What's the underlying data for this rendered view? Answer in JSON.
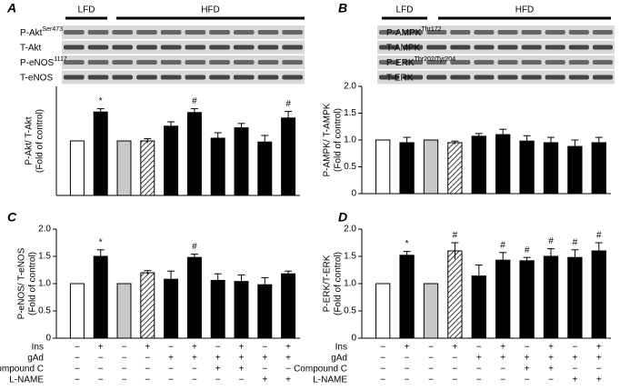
{
  "chart_data": [
    {
      "type": "bar",
      "panel": "A",
      "ylabel": [
        "P-Akt/ T-Akt",
        "(Fold of control)"
      ],
      "blot": {
        "groups": [
          "LFD",
          "HFD"
        ],
        "rows": [
          {
            "name": "P-Akt",
            "sup": "Ser473"
          },
          {
            "name": "T-Akt"
          },
          {
            "name": "P-eNOS",
            "sup": "1117"
          },
          {
            "name": "T-eNOS"
          }
        ]
      },
      "ylim": [
        0,
        2
      ],
      "values": [
        1.0,
        1.53,
        1.0,
        1.0,
        1.27,
        1.52,
        1.05,
        1.24,
        0.98,
        1.42
      ],
      "errors": [
        null,
        0.06,
        null,
        0.04,
        0.08,
        0.07,
        0.1,
        0.08,
        0.12,
        0.12
      ],
      "annotations": [
        null,
        "*",
        null,
        null,
        null,
        "#",
        null,
        null,
        null,
        "#"
      ],
      "colors": [
        "#ffffff",
        "#000000",
        "#c8c8c8",
        "#ffffff",
        "#000000",
        "#000000",
        "#000000",
        "#000000",
        "#000000",
        "#000000"
      ],
      "hatched": [
        false,
        false,
        false,
        true,
        false,
        false,
        false,
        false,
        false,
        false
      ]
    },
    {
      "type": "bar",
      "panel": "B",
      "ylabel": [
        "P-AMPK/ T-AMPK",
        "(Fold of control)"
      ],
      "blot": {
        "groups": [
          "LFD",
          "HFD"
        ],
        "rows": [
          {
            "name": "P-AMPK",
            "sup": "Thr172"
          },
          {
            "name": "T-AMPK"
          },
          {
            "name": "P-ERK",
            "sup": "Thr202/Tyr204"
          },
          {
            "name": "T-ERK"
          }
        ]
      },
      "ylim": [
        0,
        2
      ],
      "yticks": [
        0,
        0.5,
        {
          "value": 1,
          "label": "1.0"
        },
        1.5,
        {
          "value": 2,
          "label": "2.0"
        }
      ],
      "values": [
        1.0,
        0.95,
        1.0,
        0.95,
        1.07,
        1.1,
        0.98,
        0.95,
        0.88,
        0.95
      ],
      "errors": [
        null,
        0.1,
        null,
        0.03,
        0.05,
        0.1,
        0.1,
        0.1,
        0.12,
        0.1
      ],
      "annotations": [
        null,
        null,
        null,
        null,
        null,
        null,
        null,
        null,
        null,
        null
      ],
      "colors": [
        "#ffffff",
        "#000000",
        "#c8c8c8",
        "#ffffff",
        "#000000",
        "#000000",
        "#000000",
        "#000000",
        "#000000",
        "#000000"
      ],
      "hatched": [
        false,
        false,
        false,
        true,
        false,
        false,
        false,
        false,
        false,
        false
      ]
    },
    {
      "type": "bar",
      "panel": "C",
      "ylabel": [
        "P-eNOS/ T-eNOS",
        "(Fold of control)"
      ],
      "ylim": [
        0,
        2
      ],
      "yticks": [
        0,
        0.5,
        {
          "value": 1,
          "label": "1.0"
        },
        1.5,
        {
          "value": 2,
          "label": "2.0"
        }
      ],
      "values": [
        1.0,
        1.5,
        1.0,
        1.2,
        1.08,
        1.48,
        1.06,
        1.04,
        0.98,
        1.18
      ],
      "errors": [
        null,
        0.12,
        null,
        0.04,
        0.15,
        0.06,
        0.12,
        0.12,
        0.13,
        0.05
      ],
      "annotations": [
        null,
        "*",
        null,
        null,
        null,
        "#",
        null,
        null,
        null,
        null
      ],
      "colors": [
        "#ffffff",
        "#000000",
        "#c8c8c8",
        "#ffffff",
        "#000000",
        "#000000",
        "#000000",
        "#000000",
        "#000000",
        "#000000"
      ],
      "hatched": [
        false,
        false,
        false,
        true,
        false,
        false,
        false,
        false,
        false,
        false
      ],
      "treatments": [
        {
          "name": "Ins",
          "signs": [
            "−",
            "+",
            "−",
            "+",
            "−",
            "+",
            "−",
            "+",
            "−",
            "+"
          ]
        },
        {
          "name": "gAd",
          "signs": [
            "−",
            "−",
            "−",
            "−",
            "+",
            "+",
            "+",
            "+",
            "+",
            "+"
          ]
        },
        {
          "name": "Compound C",
          "signs": [
            "−",
            "−",
            "−",
            "−",
            "−",
            "−",
            "+",
            "+",
            "−",
            "−"
          ]
        },
        {
          "name": "L-NAME",
          "signs": [
            "−",
            "−",
            "−",
            "−",
            "−",
            "−",
            "−",
            "−",
            "+",
            "+"
          ]
        }
      ]
    },
    {
      "type": "bar",
      "panel": "D",
      "ylabel": [
        "P-ERK/T-ERK",
        "(Fold of control)"
      ],
      "ylim": [
        0,
        2
      ],
      "yticks": [
        0,
        0.5,
        {
          "value": 1,
          "label": "1.0"
        },
        1.5,
        {
          "value": 2,
          "label": "2.0"
        }
      ],
      "values": [
        1.0,
        1.52,
        1.0,
        1.6,
        1.14,
        1.43,
        1.42,
        1.5,
        1.48,
        1.6
      ],
      "errors": [
        null,
        0.07,
        null,
        0.15,
        0.2,
        0.14,
        0.06,
        0.14,
        0.14,
        0.15
      ],
      "annotations": [
        null,
        "*",
        null,
        "#",
        null,
        "#",
        "#",
        "#",
        "#",
        "#"
      ],
      "colors": [
        "#ffffff",
        "#000000",
        "#c8c8c8",
        "#ffffff",
        "#000000",
        "#000000",
        "#000000",
        "#000000",
        "#000000",
        "#000000"
      ],
      "hatched": [
        false,
        false,
        false,
        true,
        false,
        false,
        false,
        false,
        false,
        false
      ],
      "treatments": [
        {
          "name": "Ins",
          "signs": [
            "−",
            "+",
            "−",
            "+",
            "−",
            "+",
            "−",
            "+",
            "−",
            "+"
          ]
        },
        {
          "name": "gAd",
          "signs": [
            "−",
            "−",
            "−",
            "−",
            "+",
            "+",
            "+",
            "+",
            "+",
            "+"
          ]
        },
        {
          "name": "Compound C",
          "signs": [
            "−",
            "−",
            "−",
            "−",
            "−",
            "−",
            "+",
            "+",
            "−",
            "−"
          ]
        },
        {
          "name": "L-NAME",
          "signs": [
            "−",
            "−",
            "−",
            "−",
            "−",
            "−",
            "−",
            "−",
            "+",
            "+"
          ]
        }
      ]
    }
  ]
}
